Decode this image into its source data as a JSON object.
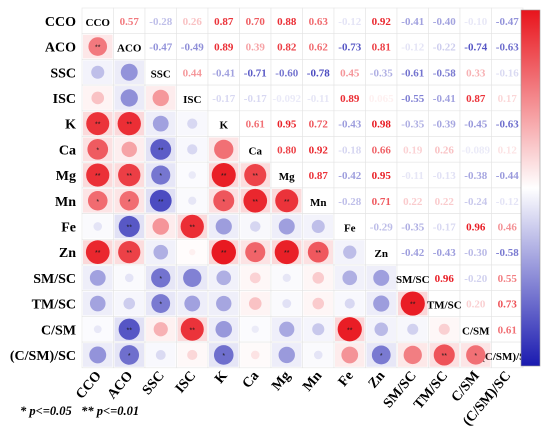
{
  "chart_data": {
    "type": "heatmap",
    "subtype": "correlation-matrix",
    "variables": [
      "CCO",
      "ACO",
      "SSC",
      "ISC",
      "K",
      "Ca",
      "Mg",
      "Mn",
      "Fe",
      "Zn",
      "SM/SC",
      "TM/SC",
      "C/SM",
      "(C/SM)/SC"
    ],
    "upper_triangle": "coefficient text",
    "lower_triangle": "circles sized and colored by coefficient",
    "color_scale": {
      "min": -1,
      "max": 1,
      "negative_color": "#1a1ab0",
      "positive_color": "#e8141c",
      "zero_color": "#ffffff"
    },
    "legend_position": "right",
    "significance_note": "* p<=0.05   ** p<=0.01",
    "matrix": [
      [
        1,
        0.57,
        -0.28,
        0.26,
        0.87,
        0.7,
        0.88,
        0.63,
        -0.12,
        0.92,
        -0.41,
        -0.4,
        -0.1,
        -0.47
      ],
      [
        0.57,
        1,
        -0.47,
        -0.49,
        0.89,
        0.39,
        0.82,
        0.62,
        -0.73,
        0.81,
        -0.12,
        -0.22,
        -0.74,
        -0.63
      ],
      [
        -0.28,
        -0.47,
        1,
        0.44,
        -0.41,
        -0.71,
        -0.6,
        -0.78,
        0.45,
        -0.35,
        -0.61,
        -0.58,
        0.33,
        -0.16
      ],
      [
        0.26,
        -0.49,
        0.44,
        1,
        -0.17,
        -0.17,
        -0.092,
        -0.11,
        0.89,
        0.065,
        -0.55,
        -0.41,
        0.87,
        0.17
      ],
      [
        0.87,
        0.89,
        -0.41,
        -0.17,
        1,
        0.61,
        0.95,
        0.72,
        -0.43,
        0.98,
        -0.35,
        -0.39,
        -0.45,
        -0.63
      ],
      [
        0.7,
        0.39,
        -0.71,
        -0.17,
        0.61,
        1,
        0.8,
        0.92,
        -0.18,
        0.66,
        0.19,
        0.26,
        -0.089,
        0.12
      ],
      [
        0.88,
        0.82,
        -0.6,
        -0.092,
        0.95,
        0.8,
        1,
        0.87,
        -0.42,
        0.95,
        -0.11,
        -0.13,
        -0.38,
        -0.44
      ],
      [
        0.63,
        0.62,
        -0.78,
        -0.11,
        0.72,
        0.92,
        0.87,
        1,
        -0.28,
        0.71,
        0.22,
        0.22,
        -0.24,
        -0.12
      ],
      [
        -0.12,
        -0.73,
        0.45,
        0.89,
        -0.43,
        -0.18,
        -0.42,
        -0.28,
        1,
        -0.29,
        -0.35,
        -0.17,
        0.96,
        0.46
      ],
      [
        0.92,
        0.81,
        -0.35,
        0.065,
        0.98,
        0.66,
        0.95,
        0.71,
        -0.29,
        1,
        -0.42,
        -0.43,
        -0.3,
        -0.58
      ],
      [
        -0.41,
        -0.12,
        -0.61,
        -0.55,
        -0.35,
        0.19,
        -0.11,
        0.22,
        -0.35,
        -0.42,
        1,
        0.96,
        -0.2,
        0.55
      ],
      [
        -0.4,
        -0.22,
        -0.58,
        -0.41,
        -0.39,
        0.26,
        -0.13,
        0.22,
        -0.17,
        -0.43,
        0.96,
        1,
        0.2,
        0.73
      ],
      [
        -0.1,
        -0.74,
        0.33,
        0.87,
        -0.45,
        -0.089,
        -0.38,
        -0.24,
        0.96,
        -0.3,
        -0.2,
        0.2,
        1,
        0.61
      ],
      [
        -0.47,
        -0.63,
        -0.16,
        0.17,
        -0.63,
        0.12,
        -0.44,
        -0.12,
        0.46,
        -0.58,
        0.55,
        0.73,
        0.61,
        1
      ]
    ],
    "upper_labels": [
      [
        null,
        "0.57",
        "-0.28",
        "0.26",
        "0.87",
        "0.70",
        "0.88",
        "0.63",
        "-0.12",
        "0.92",
        "-0.41",
        "-0.40",
        "-0.10",
        "-0.47"
      ],
      [
        null,
        null,
        "-0.47",
        "-0.49",
        "0.89",
        "0.39",
        "0.82",
        "0.62",
        "-0.73",
        "0.81",
        "-0.12",
        "-0.22",
        "-0.74",
        "-0.63"
      ],
      [
        null,
        null,
        null,
        "0.44",
        "-0.41",
        "-0.71",
        "-0.60",
        "-0.78",
        "0.45",
        "-0.35",
        "-0.61",
        "-0.58",
        "0.33",
        "-0.16"
      ],
      [
        null,
        null,
        null,
        null,
        "-0.17",
        "-0.17",
        "-0.092",
        "-0.11",
        "0.89",
        "0.065",
        "-0.55",
        "-0.41",
        "0.87",
        "0.17"
      ],
      [
        null,
        null,
        null,
        null,
        null,
        "0.61",
        "0.95",
        "0.72",
        "-0.43",
        "0.98",
        "-0.35",
        "-0.39",
        "-0.45",
        "-0.63"
      ],
      [
        null,
        null,
        null,
        null,
        null,
        null,
        "0.80",
        "0.92",
        "-0.18",
        "0.66",
        "0.19",
        "0.26",
        "-0.089",
        "0.12"
      ],
      [
        null,
        null,
        null,
        null,
        null,
        null,
        null,
        "0.87",
        "-0.42",
        "0.95",
        "-0.11",
        "-0.13",
        "-0.38",
        "-0.44"
      ],
      [
        null,
        null,
        null,
        null,
        null,
        null,
        null,
        null,
        "-0.28",
        "0.71",
        "0.22",
        "0.22",
        "-0.24",
        "-0.12"
      ],
      [
        null,
        null,
        null,
        null,
        null,
        null,
        null,
        null,
        null,
        "-0.29",
        "-0.35",
        "-0.17",
        "0.96",
        "0.46"
      ],
      [
        null,
        null,
        null,
        null,
        null,
        null,
        null,
        null,
        null,
        null,
        "-0.42",
        "-0.43",
        "-0.30",
        "-0.58"
      ],
      [
        null,
        null,
        null,
        null,
        null,
        null,
        null,
        null,
        null,
        null,
        null,
        "0.96",
        "-0.20",
        "0.55"
      ],
      [
        null,
        null,
        null,
        null,
        null,
        null,
        null,
        null,
        null,
        null,
        null,
        null,
        "0.20",
        "0.73"
      ],
      [
        null,
        null,
        null,
        null,
        null,
        null,
        null,
        null,
        null,
        null,
        null,
        null,
        null,
        "0.61"
      ],
      [
        null,
        null,
        null,
        null,
        null,
        null,
        null,
        null,
        null,
        null,
        null,
        null,
        null,
        null
      ]
    ],
    "lower_stars": [
      [],
      [
        "**"
      ],
      [
        "",
        ""
      ],
      [
        "",
        "",
        ""
      ],
      [
        "**",
        "**",
        "",
        ""
      ],
      [
        "*",
        "",
        "**",
        "",
        ""
      ],
      [
        "**",
        "**",
        "*",
        "",
        "**",
        "**"
      ],
      [
        "*",
        "*",
        "**",
        "",
        "*",
        "**",
        "**"
      ],
      [
        "",
        "**",
        "",
        "**",
        "",
        "",
        "",
        ""
      ],
      [
        "**",
        "**",
        "",
        "",
        "**",
        "*",
        "**",
        "**",
        ""
      ],
      [
        "",
        "",
        "*",
        "",
        "",
        "",
        "",
        "",
        "",
        ""
      ],
      [
        "",
        "",
        "*",
        "",
        "",
        "",
        "",
        "",
        "",
        "",
        "**"
      ],
      [
        "",
        "**",
        "",
        "**",
        "",
        "",
        "",
        "",
        "**",
        "",
        "",
        ""
      ],
      [
        "",
        "*",
        "",
        "",
        "*",
        "",
        "",
        "",
        "",
        "*",
        "",
        "**",
        "*"
      ]
    ]
  }
}
